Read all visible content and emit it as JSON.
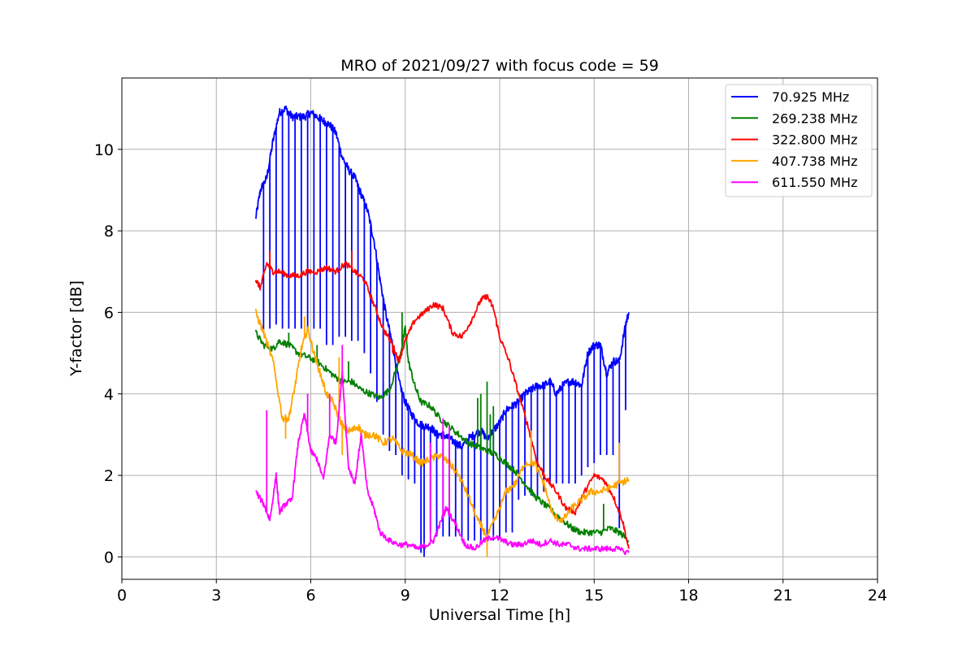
{
  "chart_data": {
    "type": "line",
    "title": "MRO of 2021/09/27 with focus code = 59",
    "xlabel": "Universal Time [h]",
    "ylabel": "Y-factor [dB]",
    "xlim": [
      0,
      24
    ],
    "ylim": [
      -0.55,
      11.75
    ],
    "xticks": [
      0,
      3,
      6,
      9,
      12,
      15,
      18,
      21,
      24
    ],
    "yticks": [
      0,
      2,
      4,
      6,
      8,
      10
    ],
    "grid": true,
    "legend_position": "upper right",
    "series": [
      {
        "name": "  70.925 MHz",
        "color": "#0000ff",
        "x": [
          4.25,
          4.4,
          4.6,
          4.8,
          5.0,
          5.2,
          5.4,
          5.6,
          5.8,
          6.0,
          6.2,
          6.4,
          6.6,
          6.8,
          7.0,
          7.2,
          7.4,
          7.6,
          7.8,
          8.0,
          8.2,
          8.4,
          8.6,
          8.8,
          9.0,
          9.2,
          9.4,
          9.6,
          9.8,
          10.0,
          10.2,
          10.4,
          10.6,
          10.8,
          11.0,
          11.2,
          11.4,
          11.6,
          11.8,
          12.0,
          12.2,
          12.4,
          12.6,
          12.8,
          13.0,
          13.2,
          13.4,
          13.6,
          13.8,
          14.0,
          14.2,
          14.4,
          14.6,
          14.8,
          15.0,
          15.2,
          15.4,
          15.6,
          15.8,
          16.0,
          16.1
        ],
        "y": [
          8.3,
          9.0,
          9.3,
          10.2,
          10.9,
          11.0,
          10.8,
          10.8,
          10.8,
          10.9,
          10.8,
          10.7,
          10.6,
          10.4,
          9.8,
          9.5,
          9.3,
          8.9,
          8.5,
          7.8,
          6.8,
          5.9,
          5.2,
          4.3,
          3.8,
          3.5,
          3.3,
          3.2,
          3.2,
          3.0,
          3.0,
          2.9,
          2.8,
          2.7,
          2.9,
          3.0,
          3.1,
          2.9,
          3.1,
          3.3,
          3.6,
          3.7,
          3.8,
          4.0,
          4.1,
          4.2,
          4.2,
          4.3,
          4.0,
          4.2,
          4.3,
          4.3,
          4.2,
          5.0,
          5.2,
          5.2,
          4.5,
          4.8,
          4.8,
          5.7,
          6.0
        ],
        "dips": [
          [
            4.5,
            5.5
          ],
          [
            4.7,
            5.6
          ],
          [
            4.9,
            5.7
          ],
          [
            5.1,
            5.6
          ],
          [
            5.3,
            5.6
          ],
          [
            5.5,
            5.6
          ],
          [
            5.7,
            5.6
          ],
          [
            5.9,
            5.6
          ],
          [
            6.1,
            5.6
          ],
          [
            6.3,
            5.6
          ],
          [
            6.5,
            5.2
          ],
          [
            6.7,
            5.2
          ],
          [
            6.9,
            5.4
          ],
          [
            7.1,
            5.4
          ],
          [
            7.3,
            5.3
          ],
          [
            7.5,
            5.3
          ],
          [
            7.7,
            5.0
          ],
          [
            7.9,
            4.5
          ],
          [
            8.1,
            3.8
          ],
          [
            8.3,
            3.0
          ],
          [
            8.5,
            2.6
          ],
          [
            8.7,
            2.5
          ],
          [
            8.9,
            2.0
          ],
          [
            9.1,
            1.9
          ],
          [
            9.3,
            1.8
          ],
          [
            9.5,
            0.1
          ],
          [
            9.6,
            0.0
          ],
          [
            9.8,
            0.6
          ],
          [
            10.0,
            0.5
          ],
          [
            10.2,
            0.5
          ],
          [
            10.4,
            0.5
          ],
          [
            10.6,
            0.5
          ],
          [
            10.8,
            0.4
          ],
          [
            11.0,
            0.4
          ],
          [
            11.2,
            0.4
          ],
          [
            11.4,
            0.4
          ],
          [
            11.6,
            0.4
          ],
          [
            11.8,
            0.4
          ],
          [
            12.0,
            0.5
          ],
          [
            12.2,
            0.6
          ],
          [
            12.4,
            0.6
          ],
          [
            12.6,
            1.4
          ],
          [
            12.8,
            1.5
          ],
          [
            13.0,
            1.5
          ],
          [
            13.2,
            1.5
          ],
          [
            13.4,
            1.6
          ],
          [
            13.6,
            1.8
          ],
          [
            13.8,
            1.8
          ],
          [
            14.0,
            1.8
          ],
          [
            14.2,
            1.8
          ],
          [
            14.4,
            1.8
          ],
          [
            14.6,
            2.0
          ],
          [
            14.8,
            2.2
          ],
          [
            15.0,
            2.3
          ],
          [
            15.2,
            2.5
          ],
          [
            15.4,
            2.5
          ],
          [
            15.6,
            2.5
          ],
          [
            15.8,
            0.7
          ],
          [
            16.0,
            3.6
          ]
        ]
      },
      {
        "name": "269.238 MHz",
        "color": "#008000",
        "x": [
          4.25,
          4.5,
          4.8,
          5.0,
          5.3,
          5.6,
          5.9,
          6.2,
          6.5,
          6.8,
          7.0,
          7.3,
          7.6,
          7.9,
          8.2,
          8.5,
          8.8,
          9.0,
          9.1,
          9.3,
          9.5,
          9.8,
          10.1,
          10.4,
          10.7,
          11.0,
          11.3,
          11.6,
          11.9,
          12.2,
          12.5,
          12.8,
          13.1,
          13.4,
          13.7,
          14.0,
          14.3,
          14.6,
          14.9,
          15.2,
          15.5,
          15.8,
          16.1
        ],
        "y": [
          5.5,
          5.2,
          5.1,
          5.3,
          5.2,
          5.0,
          4.9,
          4.8,
          4.6,
          4.4,
          4.3,
          4.3,
          4.1,
          4.0,
          3.9,
          4.1,
          4.8,
          5.6,
          4.8,
          4.2,
          3.8,
          3.7,
          3.4,
          3.2,
          3.0,
          2.8,
          2.7,
          2.6,
          2.5,
          2.3,
          2.1,
          1.8,
          1.5,
          1.3,
          1.1,
          0.9,
          0.7,
          0.6,
          0.6,
          0.6,
          0.7,
          0.6,
          0.4
        ],
        "spikes": [
          [
            5.3,
            5.5
          ],
          [
            6.2,
            5.2
          ],
          [
            7.2,
            4.8
          ],
          [
            8.9,
            6.0
          ],
          [
            11.3,
            3.9
          ],
          [
            11.4,
            4.0
          ],
          [
            11.6,
            4.3
          ],
          [
            11.7,
            3.5
          ],
          [
            11.8,
            3.7
          ],
          [
            15.3,
            1.3
          ]
        ]
      },
      {
        "name": "322.800 MHz",
        "color": "#ff0000",
        "x": [
          4.25,
          4.4,
          4.6,
          4.8,
          5.0,
          5.3,
          5.6,
          5.9,
          6.2,
          6.5,
          6.8,
          7.1,
          7.4,
          7.7,
          8.0,
          8.3,
          8.6,
          8.8,
          9.0,
          9.3,
          9.6,
          9.9,
          10.2,
          10.5,
          10.8,
          11.1,
          11.4,
          11.6,
          11.8,
          12.0,
          12.3,
          12.6,
          12.9,
          13.2,
          13.5,
          13.8,
          14.1,
          14.4,
          14.7,
          15.0,
          15.3,
          15.6,
          15.9,
          16.1
        ],
        "y": [
          6.8,
          6.6,
          7.2,
          7.0,
          7.0,
          6.9,
          6.9,
          7.0,
          7.0,
          7.1,
          7.0,
          7.2,
          7.0,
          6.8,
          6.2,
          5.6,
          5.2,
          4.8,
          5.3,
          5.8,
          6.0,
          6.2,
          6.1,
          5.5,
          5.4,
          5.8,
          6.3,
          6.4,
          6.1,
          5.4,
          4.8,
          4.0,
          3.2,
          2.3,
          1.9,
          1.6,
          1.2,
          1.1,
          1.6,
          2.0,
          1.9,
          1.5,
          0.9,
          0.2
        ],
        "spikes": [
          [
            4.7,
            7.5
          ],
          [
            7.3,
            7.5
          ],
          [
            8.6,
            5.0
          ]
        ]
      },
      {
        "name": "407.738 MHz",
        "color": "#ffa500",
        "x": [
          4.25,
          4.5,
          4.8,
          5.1,
          5.3,
          5.5,
          5.7,
          5.9,
          6.1,
          6.3,
          6.5,
          6.7,
          6.9,
          7.1,
          7.3,
          7.5,
          7.7,
          8.0,
          8.3,
          8.6,
          8.9,
          9.2,
          9.5,
          9.8,
          10.1,
          10.4,
          10.7,
          11.0,
          11.3,
          11.6,
          11.9,
          12.2,
          12.5,
          12.8,
          13.1,
          13.4,
          13.7,
          14.0,
          14.3,
          14.6,
          14.9,
          15.2,
          15.5,
          15.8,
          16.1
        ],
        "y": [
          6.0,
          5.5,
          4.8,
          3.4,
          3.4,
          4.2,
          5.1,
          5.6,
          5.0,
          4.5,
          4.0,
          3.8,
          3.4,
          3.1,
          3.1,
          3.2,
          3.0,
          3.0,
          2.8,
          2.9,
          2.6,
          2.5,
          2.3,
          2.4,
          2.5,
          2.3,
          2.0,
          1.5,
          0.9,
          0.5,
          1.0,
          1.6,
          1.8,
          2.3,
          2.3,
          1.8,
          1.0,
          0.9,
          1.2,
          1.4,
          1.6,
          1.6,
          1.7,
          1.8,
          1.9
        ],
        "spikes": [
          [
            5.2,
            2.9
          ],
          [
            5.8,
            5.9
          ],
          [
            6.9,
            4.9
          ],
          [
            7.0,
            2.5
          ],
          [
            11.6,
            0.0
          ],
          [
            13.0,
            3.1
          ],
          [
            15.8,
            2.8
          ]
        ]
      },
      {
        "name": "611.550 MHz",
        "color": "#ff00ff",
        "x": [
          4.25,
          4.5,
          4.7,
          4.9,
          5.0,
          5.2,
          5.4,
          5.6,
          5.8,
          6.0,
          6.2,
          6.4,
          6.6,
          6.8,
          7.0,
          7.2,
          7.4,
          7.6,
          7.8,
          8.0,
          8.2,
          8.5,
          8.8,
          9.1,
          9.4,
          9.7,
          9.9,
          10.1,
          10.3,
          10.6,
          10.9,
          11.2,
          11.5,
          11.8,
          12.1,
          12.4,
          12.7,
          13.0,
          13.3,
          13.6,
          13.9,
          14.2,
          14.5,
          14.8,
          15.1,
          15.4,
          15.7,
          16.1
        ],
        "y": [
          1.6,
          1.3,
          0.9,
          2.0,
          1.1,
          1.3,
          1.4,
          2.8,
          3.5,
          2.6,
          2.4,
          1.9,
          3.0,
          2.8,
          4.5,
          2.2,
          1.8,
          3.0,
          1.6,
          1.2,
          0.6,
          0.4,
          0.3,
          0.3,
          0.2,
          0.3,
          0.4,
          0.8,
          1.2,
          0.8,
          0.3,
          0.2,
          0.4,
          0.5,
          0.4,
          0.3,
          0.3,
          0.4,
          0.3,
          0.4,
          0.3,
          0.3,
          0.2,
          0.2,
          0.2,
          0.2,
          0.2,
          0.1
        ],
        "spikes": [
          [
            4.6,
            3.6
          ],
          [
            5.9,
            4.0
          ],
          [
            6.6,
            4.0
          ],
          [
            7.0,
            5.2
          ],
          [
            9.8,
            2.8
          ],
          [
            10.2,
            3.4
          ],
          [
            10.4,
            3.2
          ]
        ]
      }
    ]
  }
}
